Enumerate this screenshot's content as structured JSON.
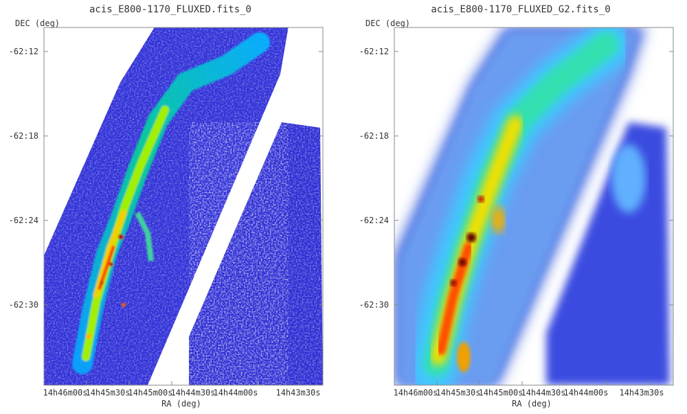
{
  "chart_data": [
    {
      "type": "heatmap",
      "title": "acis_E800-1170_FLUXED.fits_0",
      "xlabel": "RA (deg)",
      "ylabel": "DEC (deg)",
      "x_ticks": [
        "14h46m00s",
        "14h45m30s",
        "14h45m00s",
        "14h44m30s",
        "14h44m00s",
        "14h43m30s"
      ],
      "y_ticks": [
        "-62:12",
        "-62:18",
        "-62:24",
        "-62:30"
      ],
      "colormap": [
        "#ffffff",
        "#2020d0",
        "#00a0ff",
        "#00e0a0",
        "#f0f000",
        "#ff4000",
        "#600000"
      ],
      "smoothing": "none"
    },
    {
      "type": "heatmap",
      "title": "acis_E800-1170_FLUXED_G2.fits_0",
      "xlabel": "RA (deg)",
      "ylabel": "DEC (deg)",
      "x_ticks": [
        "14h46m00s",
        "14h45m30s",
        "14h45m00s",
        "14h44m30s",
        "14h44m00s",
        "14h43m30s"
      ],
      "y_ticks": [
        "-62:12",
        "-62:18",
        "-62:24",
        "-62:30"
      ],
      "colormap": [
        "#ffffff",
        "#2020d0",
        "#00a0ff",
        "#00e0a0",
        "#f0f000",
        "#ff4000",
        "#600000"
      ],
      "smoothing": "gaussian"
    }
  ]
}
